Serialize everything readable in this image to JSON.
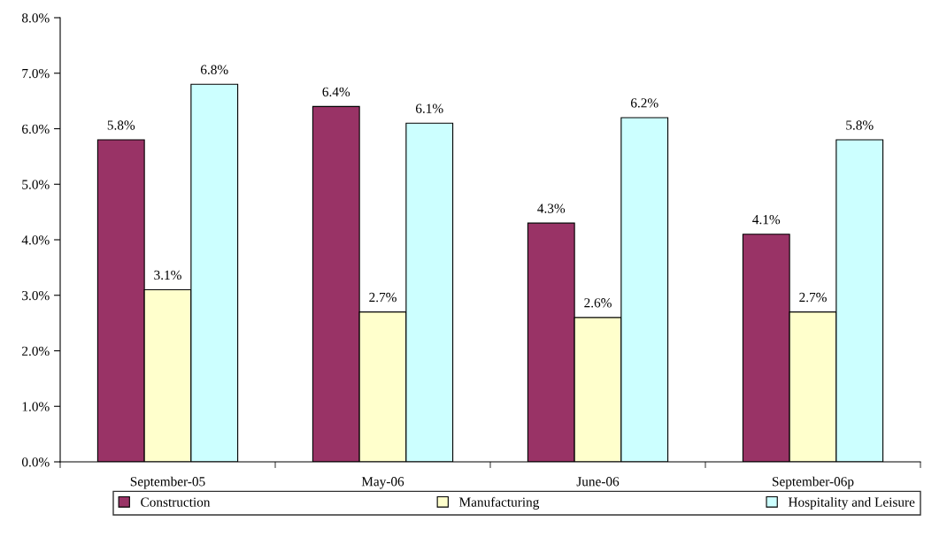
{
  "chart_data": {
    "type": "bar",
    "categories": [
      "September-05",
      "May-06",
      "June-06",
      "September-06p"
    ],
    "series": [
      {
        "name": "Construction",
        "color": "#993366",
        "values": [
          5.8,
          6.4,
          4.3,
          4.1
        ],
        "value_labels": [
          "5.8%",
          "6.4%",
          "4.3%",
          "4.1%"
        ]
      },
      {
        "name": "Manufacturing",
        "color": "#ffffcc",
        "values": [
          3.1,
          2.7,
          2.6,
          2.7
        ],
        "value_labels": [
          "3.1%",
          "2.7%",
          "2.6%",
          "2.7%"
        ]
      },
      {
        "name": "Hospitality and Leisure",
        "color": "#ccffff",
        "values": [
          6.8,
          6.1,
          6.2,
          5.8
        ],
        "value_labels": [
          "6.8%",
          "6.1%",
          "6.2%",
          "5.8%"
        ]
      }
    ],
    "ylim": [
      0,
      8
    ],
    "yticks": [
      {
        "value": 0,
        "label": "0.0%"
      },
      {
        "value": 1,
        "label": "1.0%"
      },
      {
        "value": 2,
        "label": "2.0%"
      },
      {
        "value": 3,
        "label": "3.0%"
      },
      {
        "value": 4,
        "label": "4.0%"
      },
      {
        "value": 5,
        "label": "5.0%"
      },
      {
        "value": 6,
        "label": "6.0%"
      },
      {
        "value": 7,
        "label": "7.0%"
      },
      {
        "value": 8,
        "label": "8.0%"
      }
    ],
    "grid": false,
    "legend": "bottom"
  }
}
